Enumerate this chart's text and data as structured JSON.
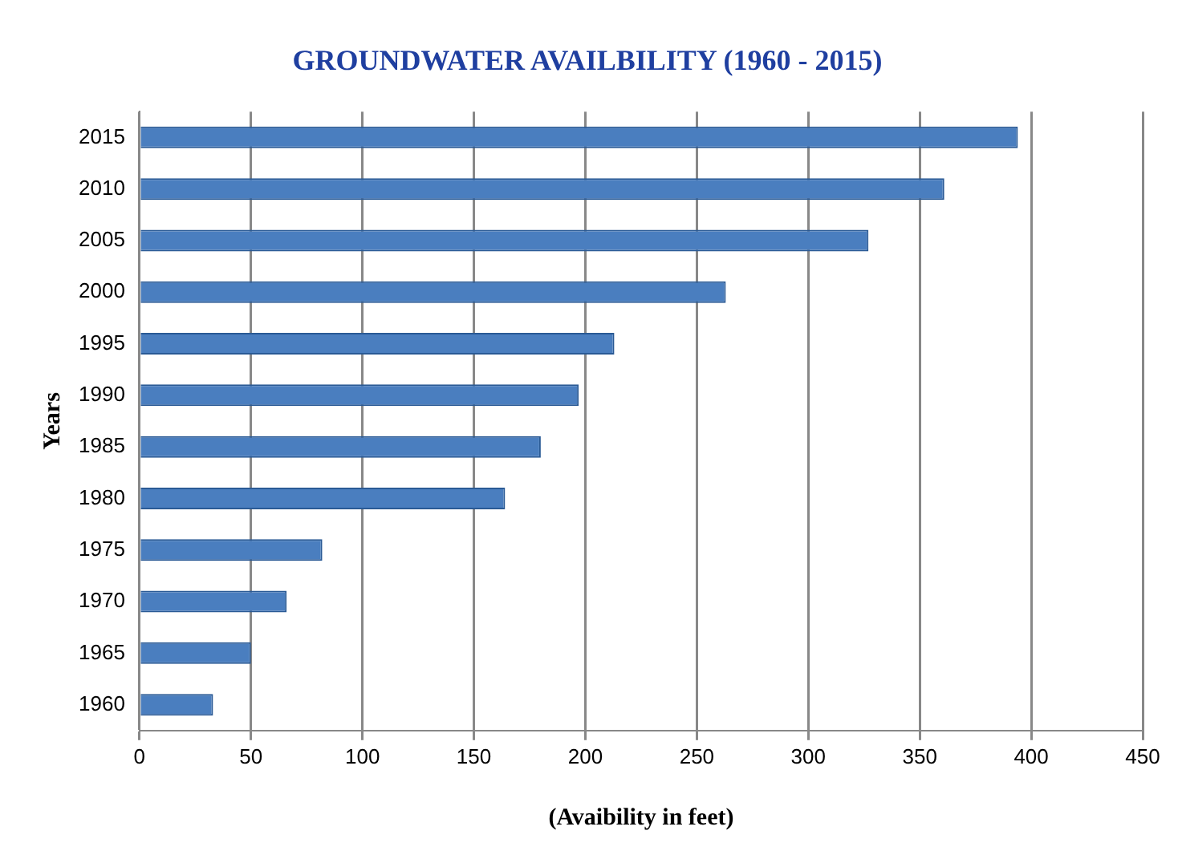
{
  "chart_data": {
    "type": "bar",
    "orientation": "horizontal",
    "title": "GROUNDWATER AVAILBILITY (1960 - 2015)",
    "xlabel": "(Avaibility in feet)",
    "ylabel": "Years",
    "categories": [
      "2015",
      "2010",
      "2005",
      "2000",
      "1995",
      "1990",
      "1985",
      "1980",
      "1975",
      "1970",
      "1965",
      "1960"
    ],
    "values": [
      394,
      361,
      327,
      263,
      213,
      197,
      180,
      164,
      82,
      66,
      50,
      33
    ],
    "color": "#4a7ebf",
    "xlim": [
      0,
      450
    ],
    "xticks": [
      0,
      50,
      100,
      150,
      200,
      250,
      300,
      350,
      400,
      450
    ],
    "grid": "x",
    "legend": false
  }
}
